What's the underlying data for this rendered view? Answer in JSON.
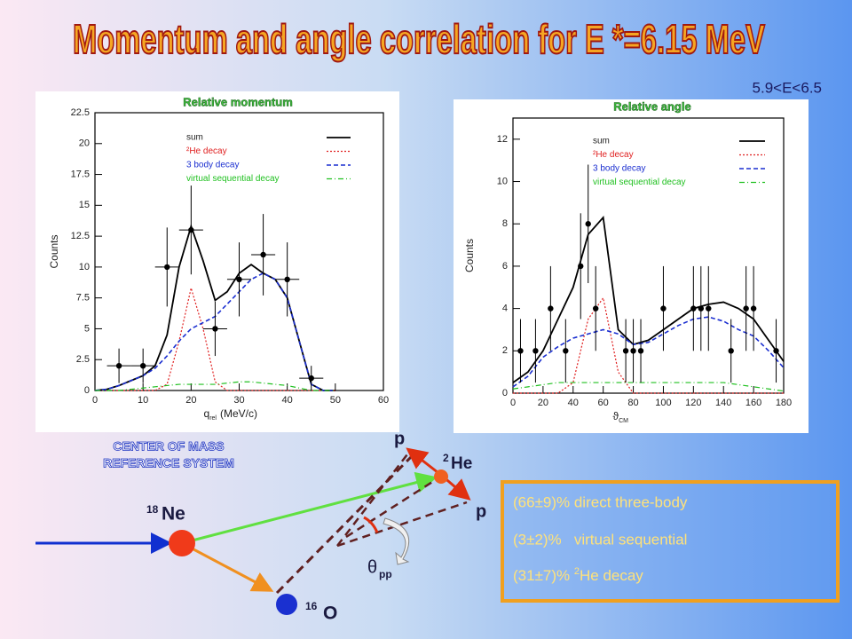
{
  "title": "Momentum and angle correlation for E *=6.15 MeV",
  "subtitle": "5.9<E<6.5",
  "chart_data": [
    {
      "type": "line",
      "title": "Relative momentum",
      "y_label": "Counts",
      "x_label": "q",
      "x_label_sub": "rel",
      "x_label_unit": "(MeV/c)",
      "xlim": [
        0,
        60
      ],
      "xticks": [
        0,
        10,
        20,
        30,
        40,
        50,
        60
      ],
      "ylim": [
        0,
        22.5
      ],
      "yticks": [
        0,
        2.5,
        5,
        7.5,
        10,
        12.5,
        15,
        17.5,
        20,
        22.5
      ],
      "x": [
        0,
        2.5,
        5,
        7.5,
        10,
        12.5,
        15,
        17.5,
        20,
        22.5,
        25,
        27.5,
        30,
        32.5,
        35,
        37.5,
        40,
        42.5,
        45,
        47.5,
        50
      ],
      "series": [
        {
          "name": "sum",
          "color": "#000000",
          "values": [
            0,
            0.1,
            0.4,
            0.8,
            1.2,
            2,
            4.5,
            10,
            13.3,
            10.5,
            7.3,
            8,
            9.5,
            10.2,
            9.5,
            9,
            7.5,
            4,
            0.5,
            0,
            0
          ]
        },
        {
          "name": "²He decay",
          "color": "#e02020",
          "values": [
            0,
            0,
            0,
            0,
            0,
            0,
            0.5,
            4,
            8.3,
            5,
            0.7,
            0,
            0,
            0,
            0,
            0,
            0,
            0,
            0,
            0,
            0
          ]
        },
        {
          "name": "3 body decay",
          "color": "#1a2ed0",
          "values": [
            0,
            0.1,
            0.4,
            0.8,
            1.2,
            1.8,
            2.8,
            4,
            5,
            5.5,
            6,
            7,
            8,
            9,
            9.5,
            9,
            7.5,
            4,
            0.5,
            0,
            0
          ]
        },
        {
          "name": "virtual sequential decay",
          "color": "#20c020",
          "values": [
            0,
            0,
            0,
            0.1,
            0.2,
            0.3,
            0.4,
            0.5,
            0.5,
            0.5,
            0.5,
            0.6,
            0.7,
            0.7,
            0.6,
            0.5,
            0.4,
            0.2,
            0,
            0,
            0
          ]
        }
      ],
      "points": {
        "x": [
          5,
          10,
          15,
          20,
          25,
          30,
          35,
          40,
          45
        ],
        "values": [
          2,
          2,
          10,
          13,
          5,
          9,
          11,
          9,
          1
        ],
        "errors": [
          1.4,
          1.4,
          3.2,
          3.6,
          2.2,
          3,
          3.3,
          3,
          1
        ],
        "xerr": 2.5
      }
    },
    {
      "type": "line",
      "title": "Relative angle",
      "y_label": "Counts",
      "x_label": "ϑ",
      "x_label_sub": "CM",
      "xlim": [
        0,
        180
      ],
      "xticks": [
        0,
        20,
        40,
        60,
        80,
        100,
        120,
        140,
        160,
        180
      ],
      "ylim": [
        0,
        13
      ],
      "yticks": [
        0,
        2,
        4,
        6,
        8,
        10,
        12
      ],
      "x": [
        0,
        10,
        20,
        30,
        40,
        50,
        60,
        70,
        80,
        90,
        100,
        110,
        120,
        130,
        140,
        150,
        160,
        170,
        180
      ],
      "series": [
        {
          "name": "sum",
          "color": "#000000",
          "values": [
            0.5,
            1,
            2,
            3.5,
            5,
            7.5,
            8.3,
            3,
            2.3,
            2.5,
            3,
            3.5,
            4,
            4.2,
            4.3,
            4,
            3.5,
            2.5,
            1.5
          ]
        },
        {
          "name": "²He decay",
          "color": "#e02020",
          "values": [
            0,
            0,
            0,
            0,
            0.5,
            3.5,
            4.5,
            1,
            0,
            0,
            0,
            0,
            0,
            0,
            0,
            0,
            0,
            0,
            0
          ]
        },
        {
          "name": "3 body decay",
          "color": "#1a2ed0",
          "values": [
            0.3,
            0.8,
            1.7,
            2.2,
            2.6,
            2.8,
            3,
            2.8,
            2.3,
            2.4,
            2.8,
            3.2,
            3.5,
            3.6,
            3.4,
            3,
            2.7,
            2,
            1.2
          ]
        },
        {
          "name": "virtual sequential decay",
          "color": "#20c020",
          "values": [
            0.2,
            0.3,
            0.4,
            0.5,
            0.5,
            0.5,
            0.5,
            0.5,
            0.5,
            0.5,
            0.5,
            0.5,
            0.5,
            0.5,
            0.5,
            0.4,
            0.3,
            0.2,
            0.1
          ]
        }
      ],
      "points": {
        "x": [
          5,
          15,
          25,
          35,
          45,
          50,
          55,
          75,
          80,
          85,
          100,
          120,
          125,
          130,
          145,
          155,
          160,
          175
        ],
        "values": [
          2,
          2,
          4,
          2,
          6,
          8,
          4,
          2,
          2,
          2,
          4,
          4,
          4,
          4,
          2,
          4,
          4,
          2
        ],
        "errors": [
          1.5,
          1.5,
          2,
          1.5,
          2.5,
          2.8,
          2,
          1.5,
          1.5,
          1.5,
          2,
          2,
          2,
          2,
          1.5,
          2,
          2,
          1.5
        ]
      }
    }
  ],
  "diagram": {
    "heading": [
      "CENTER OF MASS",
      "REFERENCE SYSTEM"
    ],
    "ne": {
      "mass": "18",
      "symbol": "Ne"
    },
    "he": {
      "mass": "2",
      "symbol": "He"
    },
    "o": {
      "mass": "16",
      "symbol": "O"
    },
    "p_top": "p",
    "p_bottom": "p",
    "theta": "θ",
    "theta_sub": "pp"
  },
  "results": [
    {
      "text": "(66±9)% direct three-body"
    },
    {
      "text": "(3±2)%   virtual sequential"
    },
    {
      "text": "(31±7)% ",
      "sup": "2",
      "rest": "He decay"
    }
  ]
}
